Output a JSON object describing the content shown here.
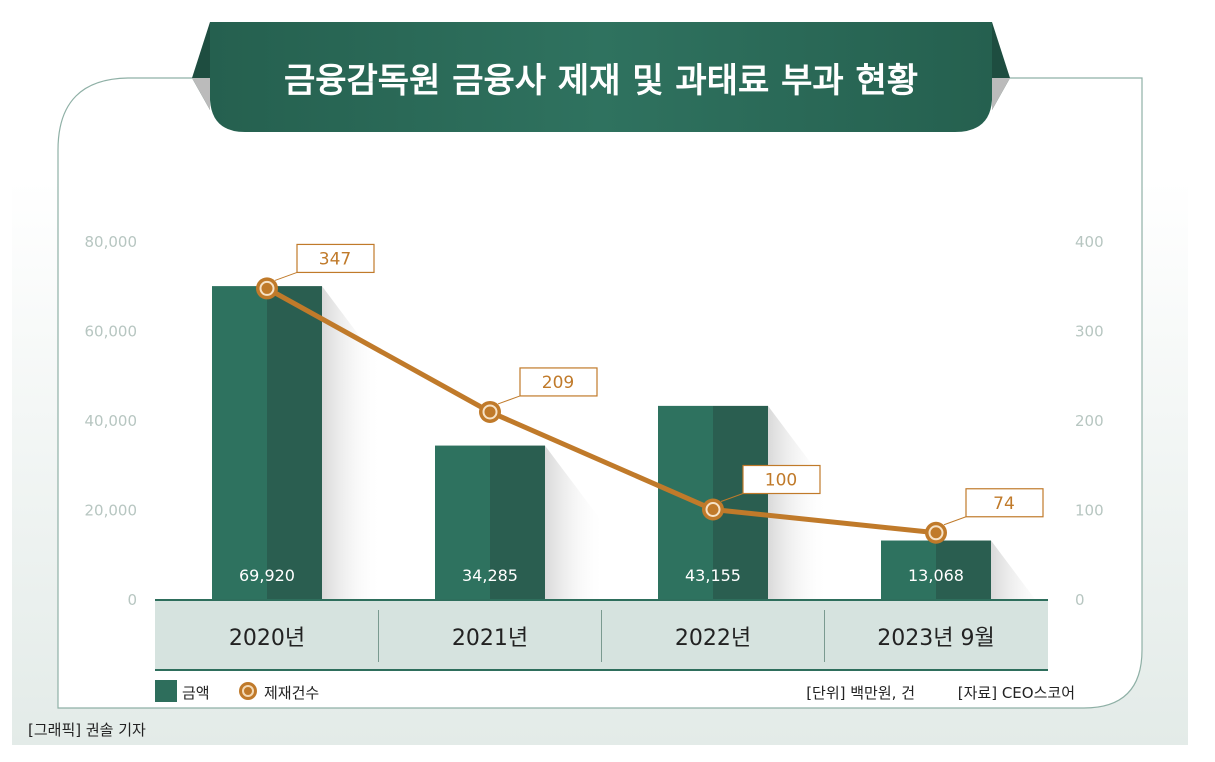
{
  "chart_data": {
    "type": "bar+line",
    "title": "금융감독원 금융사 제재 및 과태료 부과 현황",
    "categories": [
      "2020년",
      "2021년",
      "2022년",
      "2023년 9월"
    ],
    "series": [
      {
        "name": "금액",
        "type": "bar",
        "axis": "left",
        "values": [
          69920,
          34285,
          43155,
          13068
        ],
        "labels": [
          "69,920",
          "34,285",
          "43,155",
          "13,068"
        ],
        "color": "#2e6e5c"
      },
      {
        "name": "제재건수",
        "type": "line",
        "axis": "right",
        "values": [
          347,
          209,
          100,
          74
        ],
        "labels": [
          "347",
          "209",
          "100",
          "74"
        ],
        "color": "#c07a2a"
      }
    ],
    "ylim_left": [
      0,
      80000
    ],
    "ylim_right": [
      0,
      400
    ],
    "yticks_left": [
      "0",
      "20,000",
      "40,000",
      "60,000",
      "80,000"
    ],
    "yticks_right": [
      "0",
      "100",
      "200",
      "300",
      "400"
    ],
    "legend_placement": "bottom-left",
    "unit_note": "[단위] 백만원, 건",
    "source_note": "[자료] CEO스코어",
    "credit": "[그래픽] 권솔 기자"
  }
}
